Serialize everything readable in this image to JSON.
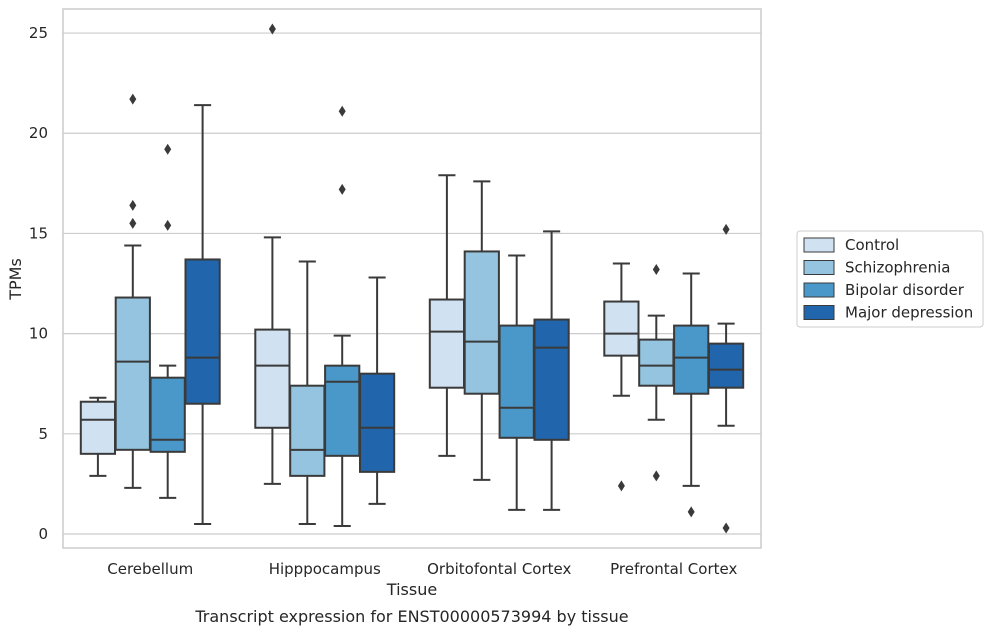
{
  "chart_data": {
    "type": "box",
    "title": "Transcript expression for ENST00000573994 by tissue",
    "xlabel": "Tissue",
    "ylabel": "TPMs",
    "ylim": [
      -0.7,
      26.2
    ],
    "yticks": [
      0,
      5,
      10,
      15,
      20,
      25
    ],
    "grid": true,
    "legend_position": "right",
    "categories": [
      "Cerebellum",
      "Hipppocampus",
      "Orbitofontal Cortex",
      "Prefrontal Cortex"
    ],
    "series": [
      {
        "name": "Control",
        "color": "#d0e1f2",
        "boxes": [
          {
            "whislo": 2.9,
            "q1": 4.0,
            "med": 5.7,
            "q3": 6.6,
            "whishi": 6.8,
            "fliers": []
          },
          {
            "whislo": 2.5,
            "q1": 5.3,
            "med": 8.4,
            "q3": 10.2,
            "whishi": 14.8,
            "fliers": [
              25.2
            ]
          },
          {
            "whislo": 3.9,
            "q1": 7.3,
            "med": 10.1,
            "q3": 11.7,
            "whishi": 17.9,
            "fliers": []
          },
          {
            "whislo": 6.9,
            "q1": 8.9,
            "med": 10.0,
            "q3": 11.6,
            "whishi": 13.5,
            "fliers": [
              2.4
            ]
          }
        ]
      },
      {
        "name": "Schizophrenia",
        "color": "#94c4df",
        "boxes": [
          {
            "whislo": 2.3,
            "q1": 4.2,
            "med": 8.6,
            "q3": 11.8,
            "whishi": 14.4,
            "fliers": [
              15.5,
              16.4,
              21.7
            ]
          },
          {
            "whislo": 0.5,
            "q1": 2.9,
            "med": 4.2,
            "q3": 7.4,
            "whishi": 13.6,
            "fliers": []
          },
          {
            "whislo": 2.7,
            "q1": 7.0,
            "med": 9.6,
            "q3": 14.1,
            "whishi": 17.6,
            "fliers": []
          },
          {
            "whislo": 5.7,
            "q1": 7.4,
            "med": 8.4,
            "q3": 9.7,
            "whishi": 10.9,
            "fliers": [
              2.9,
              13.2
            ]
          }
        ]
      },
      {
        "name": "Bipolar disorder",
        "color": "#4a98c9",
        "boxes": [
          {
            "whislo": 1.8,
            "q1": 4.1,
            "med": 4.7,
            "q3": 7.8,
            "whishi": 8.4,
            "fliers": [
              15.4,
              19.2
            ]
          },
          {
            "whislo": 0.4,
            "q1": 3.9,
            "med": 7.6,
            "q3": 8.4,
            "whishi": 9.9,
            "fliers": [
              17.2,
              21.1
            ]
          },
          {
            "whislo": 1.2,
            "q1": 4.8,
            "med": 6.3,
            "q3": 10.4,
            "whishi": 13.9,
            "fliers": []
          },
          {
            "whislo": 2.4,
            "q1": 7.0,
            "med": 8.8,
            "q3": 10.4,
            "whishi": 13.0,
            "fliers": [
              1.1
            ]
          }
        ]
      },
      {
        "name": "Major depression",
        "color": "#2166ac",
        "boxes": [
          {
            "whislo": 0.5,
            "q1": 6.5,
            "med": 8.8,
            "q3": 13.7,
            "whishi": 21.4,
            "fliers": []
          },
          {
            "whislo": 1.5,
            "q1": 3.1,
            "med": 5.3,
            "q3": 8.0,
            "whishi": 12.8,
            "fliers": []
          },
          {
            "whislo": 1.2,
            "q1": 4.7,
            "med": 9.3,
            "q3": 10.7,
            "whishi": 15.1,
            "fliers": []
          },
          {
            "whislo": 5.4,
            "q1": 7.3,
            "med": 8.2,
            "q3": 9.5,
            "whishi": 10.5,
            "fliers": [
              0.3,
              15.2
            ]
          }
        ]
      }
    ]
  }
}
